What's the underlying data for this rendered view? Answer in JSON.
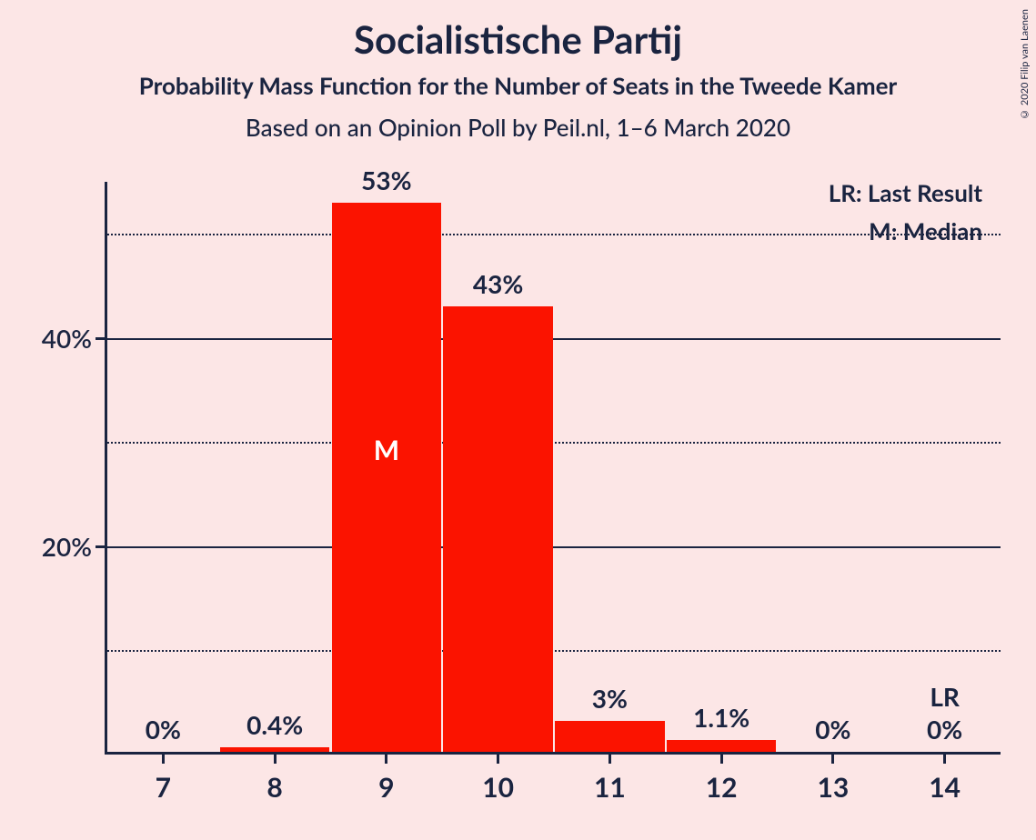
{
  "title": "Socialistische Partij",
  "subtitle": "Probability Mass Function for the Number of Seats in the Tweede Kamer",
  "subtitle2": "Based on an Opinion Poll by Peil.nl, 1–6 March 2020",
  "copyright": "© 2020 Filip van Laenen",
  "legend": {
    "lr": "LR: Last Result",
    "m": "M: Median"
  },
  "chart": {
    "type": "bar",
    "background_color": "#fce6e6",
    "bar_color": "#fb1300",
    "axis_color": "#1a2440",
    "text_color": "#1a2440",
    "median_text_color": "#ffffff",
    "title_fontsize": 42,
    "subtitle_fontsize": 26,
    "label_fontsize": 28,
    "xlabel_fontsize": 30,
    "ylim": [
      0,
      55
    ],
    "y_major_ticks": [
      20,
      40
    ],
    "y_minor_ticks": [
      10,
      30,
      50
    ],
    "categories": [
      "7",
      "8",
      "9",
      "10",
      "11",
      "12",
      "13",
      "14"
    ],
    "values": [
      0,
      0.4,
      53,
      43,
      3,
      1.1,
      0,
      0
    ],
    "value_labels": [
      "0%",
      "0.4%",
      "53%",
      "43%",
      "3%",
      "1.1%",
      "0%",
      "0%"
    ],
    "median_index": 2,
    "median_marker": "M",
    "lr_index": 7,
    "lr_marker": "LR",
    "bar_width": 0.98
  }
}
